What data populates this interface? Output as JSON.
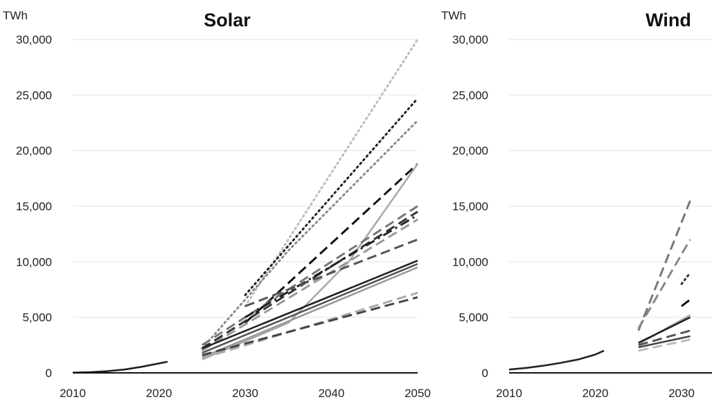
{
  "chart_data": [
    {
      "type": "line",
      "title": "Solar",
      "ylabel": "TWh",
      "xlabel": "",
      "xlim": [
        2010,
        2050
      ],
      "ylim": [
        0,
        30000
      ],
      "x_ticks": [
        2010,
        2020,
        2030,
        2040,
        2050
      ],
      "y_ticks": [
        0,
        5000,
        10000,
        15000,
        20000,
        25000,
        30000
      ],
      "x_tick_labels": [
        "2010",
        "2020",
        "2030",
        "2040",
        "2050"
      ],
      "y_tick_labels": [
        "0",
        "5,000",
        "10,000",
        "15,000",
        "20,000",
        "25,000",
        "30,000"
      ],
      "grid": true,
      "series": [
        {
          "style": "solid",
          "color": "#222222",
          "x": [
            2010,
            2012,
            2014,
            2016,
            2018,
            2020,
            2021
          ],
          "y": [
            20,
            60,
            150,
            300,
            550,
            850,
            1000
          ]
        },
        {
          "style": "dotted",
          "color": "#bbbbbb",
          "x": [
            2030,
            2050
          ],
          "y": [
            6000,
            30000
          ]
        },
        {
          "style": "dotted",
          "color": "#222222",
          "x": [
            2030,
            2050
          ],
          "y": [
            7000,
            24700
          ]
        },
        {
          "style": "dotted",
          "color": "#888888",
          "x": [
            2025,
            2035,
            2050
          ],
          "y": [
            2200,
            11000,
            22700
          ]
        },
        {
          "style": "dashed",
          "color": "#111111",
          "x": [
            2030,
            2050
          ],
          "y": [
            4500,
            18800
          ]
        },
        {
          "style": "solid",
          "color": "#aaaaaa",
          "x": [
            2025,
            2035,
            2042,
            2050
          ],
          "y": [
            1200,
            4500,
            10000,
            18800
          ]
        },
        {
          "style": "dashed",
          "color": "#777777",
          "x": [
            2025,
            2050
          ],
          "y": [
            2500,
            15000
          ]
        },
        {
          "style": "dashed",
          "color": "#333333",
          "x": [
            2025,
            2050
          ],
          "y": [
            2200,
            14500
          ]
        },
        {
          "style": "dashdot",
          "color": "#222222",
          "x": [
            2030,
            2050
          ],
          "y": [
            5000,
            14200
          ]
        },
        {
          "style": "dashed",
          "color": "#999999",
          "x": [
            2025,
            2050
          ],
          "y": [
            2000,
            13800
          ]
        },
        {
          "style": "dashed",
          "color": "#555555",
          "x": [
            2030,
            2050
          ],
          "y": [
            6000,
            12000
          ]
        },
        {
          "style": "solid",
          "color": "#222222",
          "x": [
            2025,
            2050
          ],
          "y": [
            2200,
            10100
          ]
        },
        {
          "style": "solid",
          "color": "#555555",
          "x": [
            2025,
            2050
          ],
          "y": [
            1800,
            9800
          ]
        },
        {
          "style": "solid",
          "color": "#999999",
          "x": [
            2025,
            2050
          ],
          "y": [
            1400,
            9500
          ]
        },
        {
          "style": "dashed",
          "color": "#aaaaaa",
          "x": [
            2025,
            2050
          ],
          "y": [
            1300,
            7200
          ]
        },
        {
          "style": "dashed",
          "color": "#444444",
          "x": [
            2025,
            2050
          ],
          "y": [
            1600,
            6800
          ]
        }
      ]
    },
    {
      "type": "line",
      "title": "Wind",
      "ylabel": "TWh",
      "xlabel": "",
      "xlim": [
        2010,
        2050
      ],
      "ylim": [
        0,
        30000
      ],
      "x_ticks": [
        2010,
        2020,
        2030
      ],
      "y_ticks": [
        0,
        5000,
        10000,
        15000,
        20000,
        25000,
        30000
      ],
      "x_tick_labels": [
        "2010",
        "2020",
        "2030"
      ],
      "y_tick_labels": [
        "0",
        "5,000",
        "10,000",
        "15,000",
        "20,000",
        "25,000",
        "30,000"
      ],
      "grid": true,
      "series": [
        {
          "style": "solid",
          "color": "#222222",
          "x": [
            2010,
            2012,
            2014,
            2016,
            2018,
            2020,
            2021
          ],
          "y": [
            300,
            450,
            650,
            900,
            1200,
            1650,
            2000
          ]
        },
        {
          "style": "dashed",
          "color": "#777777",
          "x": [
            2025,
            2031
          ],
          "y": [
            3800,
            15500
          ]
        },
        {
          "style": "dashed",
          "color": "#888888",
          "x": [
            2025,
            2031
          ],
          "y": [
            4000,
            12000
          ]
        },
        {
          "style": "dotted",
          "color": "#333333",
          "x": [
            2030,
            2031
          ],
          "y": [
            8000,
            9000
          ]
        },
        {
          "style": "dashed",
          "color": "#111111",
          "x": [
            2030,
            2031
          ],
          "y": [
            6000,
            6600
          ]
        },
        {
          "style": "solid",
          "color": "#aaaaaa",
          "x": [
            2025,
            2031
          ],
          "y": [
            2600,
            5200
          ]
        },
        {
          "style": "solid",
          "color": "#222222",
          "x": [
            2025,
            2031
          ],
          "y": [
            2700,
            5000
          ]
        },
        {
          "style": "dashed",
          "color": "#555555",
          "x": [
            2025,
            2031
          ],
          "y": [
            2500,
            3800
          ]
        },
        {
          "style": "dashed",
          "color": "#bbbbbb",
          "x": [
            2025,
            2031
          ],
          "y": [
            2000,
            3000
          ]
        },
        {
          "style": "solid",
          "color": "#444444",
          "x": [
            2025,
            2031
          ],
          "y": [
            2300,
            3300
          ]
        }
      ]
    }
  ]
}
